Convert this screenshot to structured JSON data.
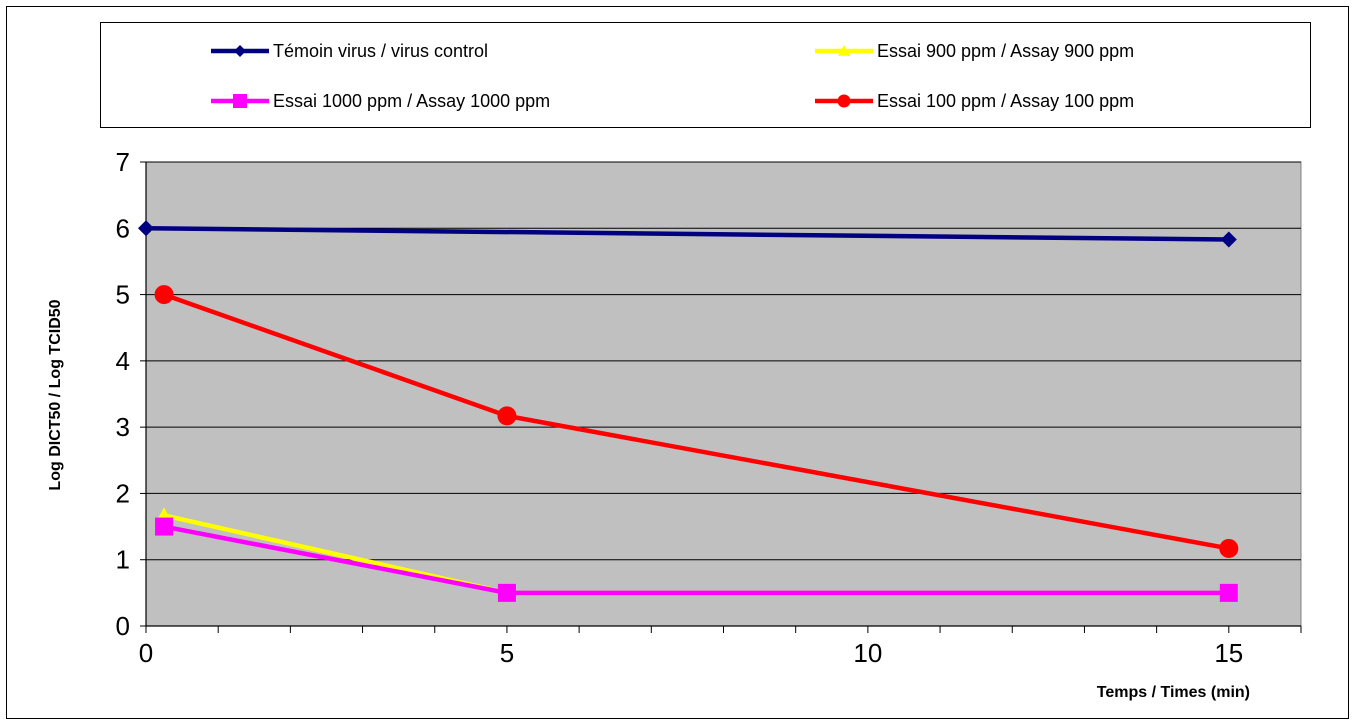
{
  "chart_data": {
    "type": "line",
    "xlabel": "Temps / Times (min)",
    "ylabel": "Log DICT50 / Log TCID50",
    "xlim": [
      0,
      16
    ],
    "ylim": [
      0,
      7
    ],
    "x_ticks": [
      "0",
      "5",
      "10",
      "15"
    ],
    "y_ticks": [
      "0",
      "1",
      "2",
      "3",
      "4",
      "5",
      "6",
      "7"
    ],
    "grid": "horizontal",
    "plot_background": "#c0c0c0",
    "legend_position": "top",
    "series": [
      {
        "name": "Témoin virus / virus control",
        "color": "#000080",
        "marker": "diamond",
        "x": [
          0,
          15
        ],
        "y": [
          6.0,
          5.83
        ]
      },
      {
        "name": "Essai 900 ppm / Assay 900 ppm",
        "color": "#ffff00",
        "marker": "triangle",
        "x": [
          0.25,
          5,
          15
        ],
        "y": [
          1.67,
          0.5,
          0.5
        ]
      },
      {
        "name": "Essai 1000 ppm / Assay 1000 ppm",
        "color": "#ff00ff",
        "marker": "square",
        "x": [
          0.25,
          5,
          15
        ],
        "y": [
          1.5,
          0.5,
          0.5
        ]
      },
      {
        "name": "Essai 100 ppm / Assay 100 ppm",
        "color": "#ff0000",
        "marker": "circle",
        "x": [
          0.25,
          5,
          15
        ],
        "y": [
          5.0,
          3.17,
          1.17
        ]
      }
    ]
  }
}
